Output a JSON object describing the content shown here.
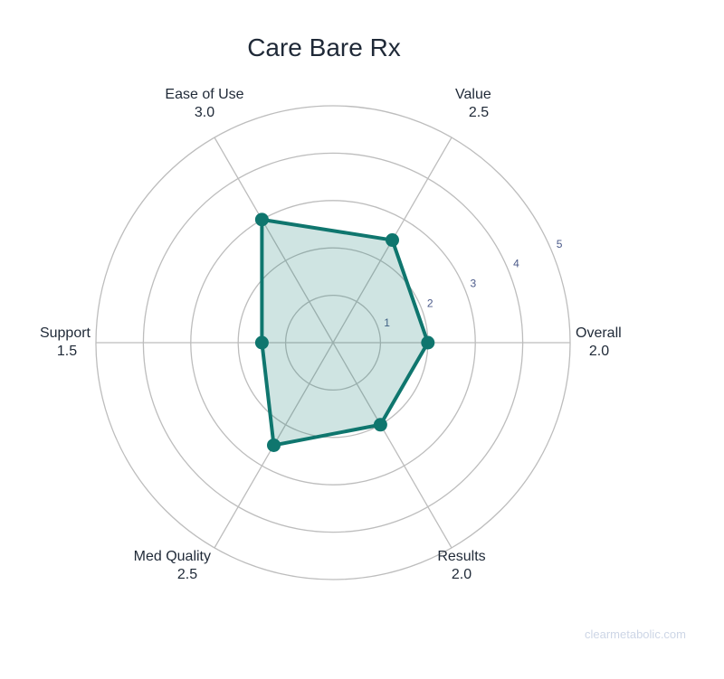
{
  "chart_data": {
    "type": "radar",
    "title": "Care Bare Rx",
    "axes": [
      "Overall",
      "Value",
      "Ease of Use",
      "Support",
      "Med Quality",
      "Results"
    ],
    "value_labels": [
      "2.0",
      "2.5",
      "3.0",
      "1.5",
      "2.5",
      "2.0"
    ],
    "values": [
      2.0,
      2.5,
      3.0,
      1.5,
      2.5,
      2.0
    ],
    "rlim": [
      0,
      5
    ],
    "radial_ticks": [
      1,
      2,
      3,
      4,
      5
    ],
    "grid": true,
    "colors": {
      "line": "#0f766e",
      "fill": "#0f766e",
      "grid": "#bdbdbd",
      "tick": "#4b5a8a"
    }
  },
  "watermark": "clearmetabolic.com"
}
